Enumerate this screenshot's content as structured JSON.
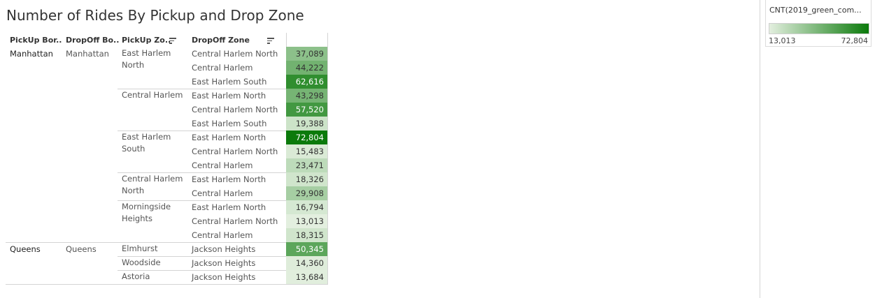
{
  "title": "Number of Rides By Pickup and Drop Zone",
  "headers": {
    "pickup_borough": "PickUp Bor..",
    "dropoff_borough": "DropOff Bo..",
    "pickup_zone": "PickUp Zo..",
    "dropoff_zone": "DropOff Zone"
  },
  "colors": {
    "min": "#e3efdf",
    "max": "#0b7a0b"
  },
  "legend": {
    "title": "CNT(2019_green_com...",
    "min_label": "13,013",
    "max_label": "72,804",
    "min": 13013,
    "max": 72804
  },
  "chart_data": {
    "type": "heatmap",
    "title": "Number of Rides By Pickup and Drop Zone",
    "columns": [
      "PickUp Bor..",
      "DropOff Bo..",
      "PickUp Zo..",
      "DropOff Zone"
    ],
    "color_range": [
      13013,
      72804
    ],
    "rows": [
      {
        "pickup_borough": "Manhattan",
        "dropoff_borough": "Manhattan",
        "pickup_zone": "East Harlem North",
        "dropoff_zone": "Central Harlem North",
        "value": 37089,
        "label": "37,089"
      },
      {
        "pickup_borough": "Manhattan",
        "dropoff_borough": "Manhattan",
        "pickup_zone": "East Harlem North",
        "dropoff_zone": "Central Harlem",
        "value": 44222,
        "label": "44,222"
      },
      {
        "pickup_borough": "Manhattan",
        "dropoff_borough": "Manhattan",
        "pickup_zone": "East Harlem North",
        "dropoff_zone": "East Harlem South",
        "value": 62616,
        "label": "62,616"
      },
      {
        "pickup_borough": "Manhattan",
        "dropoff_borough": "Manhattan",
        "pickup_zone": "Central Harlem",
        "dropoff_zone": "East Harlem North",
        "value": 43298,
        "label": "43,298"
      },
      {
        "pickup_borough": "Manhattan",
        "dropoff_borough": "Manhattan",
        "pickup_zone": "Central Harlem",
        "dropoff_zone": "Central Harlem North",
        "value": 57520,
        "label": "57,520"
      },
      {
        "pickup_borough": "Manhattan",
        "dropoff_borough": "Manhattan",
        "pickup_zone": "Central Harlem",
        "dropoff_zone": "East Harlem South",
        "value": 19388,
        "label": "19,388"
      },
      {
        "pickup_borough": "Manhattan",
        "dropoff_borough": "Manhattan",
        "pickup_zone": "East Harlem South",
        "dropoff_zone": "East Harlem North",
        "value": 72804,
        "label": "72,804"
      },
      {
        "pickup_borough": "Manhattan",
        "dropoff_borough": "Manhattan",
        "pickup_zone": "East Harlem South",
        "dropoff_zone": "Central Harlem North",
        "value": 15483,
        "label": "15,483"
      },
      {
        "pickup_borough": "Manhattan",
        "dropoff_borough": "Manhattan",
        "pickup_zone": "East Harlem South",
        "dropoff_zone": "Central Harlem",
        "value": 23471,
        "label": "23,471"
      },
      {
        "pickup_borough": "Manhattan",
        "dropoff_borough": "Manhattan",
        "pickup_zone": "Central Harlem North",
        "dropoff_zone": "East Harlem North",
        "value": 18326,
        "label": "18,326"
      },
      {
        "pickup_borough": "Manhattan",
        "dropoff_borough": "Manhattan",
        "pickup_zone": "Central Harlem North",
        "dropoff_zone": "Central Harlem",
        "value": 29908,
        "label": "29,908"
      },
      {
        "pickup_borough": "Manhattan",
        "dropoff_borough": "Manhattan",
        "pickup_zone": "Morningside Heights",
        "dropoff_zone": "East Harlem North",
        "value": 16794,
        "label": "16,794"
      },
      {
        "pickup_borough": "Manhattan",
        "dropoff_borough": "Manhattan",
        "pickup_zone": "Morningside Heights",
        "dropoff_zone": "Central Harlem North",
        "value": 13013,
        "label": "13,013"
      },
      {
        "pickup_borough": "Manhattan",
        "dropoff_borough": "Manhattan",
        "pickup_zone": "Morningside Heights",
        "dropoff_zone": "Central Harlem",
        "value": 18315,
        "label": "18,315"
      },
      {
        "pickup_borough": "Queens",
        "dropoff_borough": "Queens",
        "pickup_zone": "Elmhurst",
        "dropoff_zone": "Jackson Heights",
        "value": 50345,
        "label": "50,345"
      },
      {
        "pickup_borough": "Queens",
        "dropoff_borough": "Queens",
        "pickup_zone": "Woodside",
        "dropoff_zone": "Jackson Heights",
        "value": 14360,
        "label": "14,360"
      },
      {
        "pickup_borough": "Queens",
        "dropoff_borough": "Queens",
        "pickup_zone": "Astoria",
        "dropoff_zone": "Jackson Heights",
        "value": 13684,
        "label": "13,684"
      }
    ]
  }
}
